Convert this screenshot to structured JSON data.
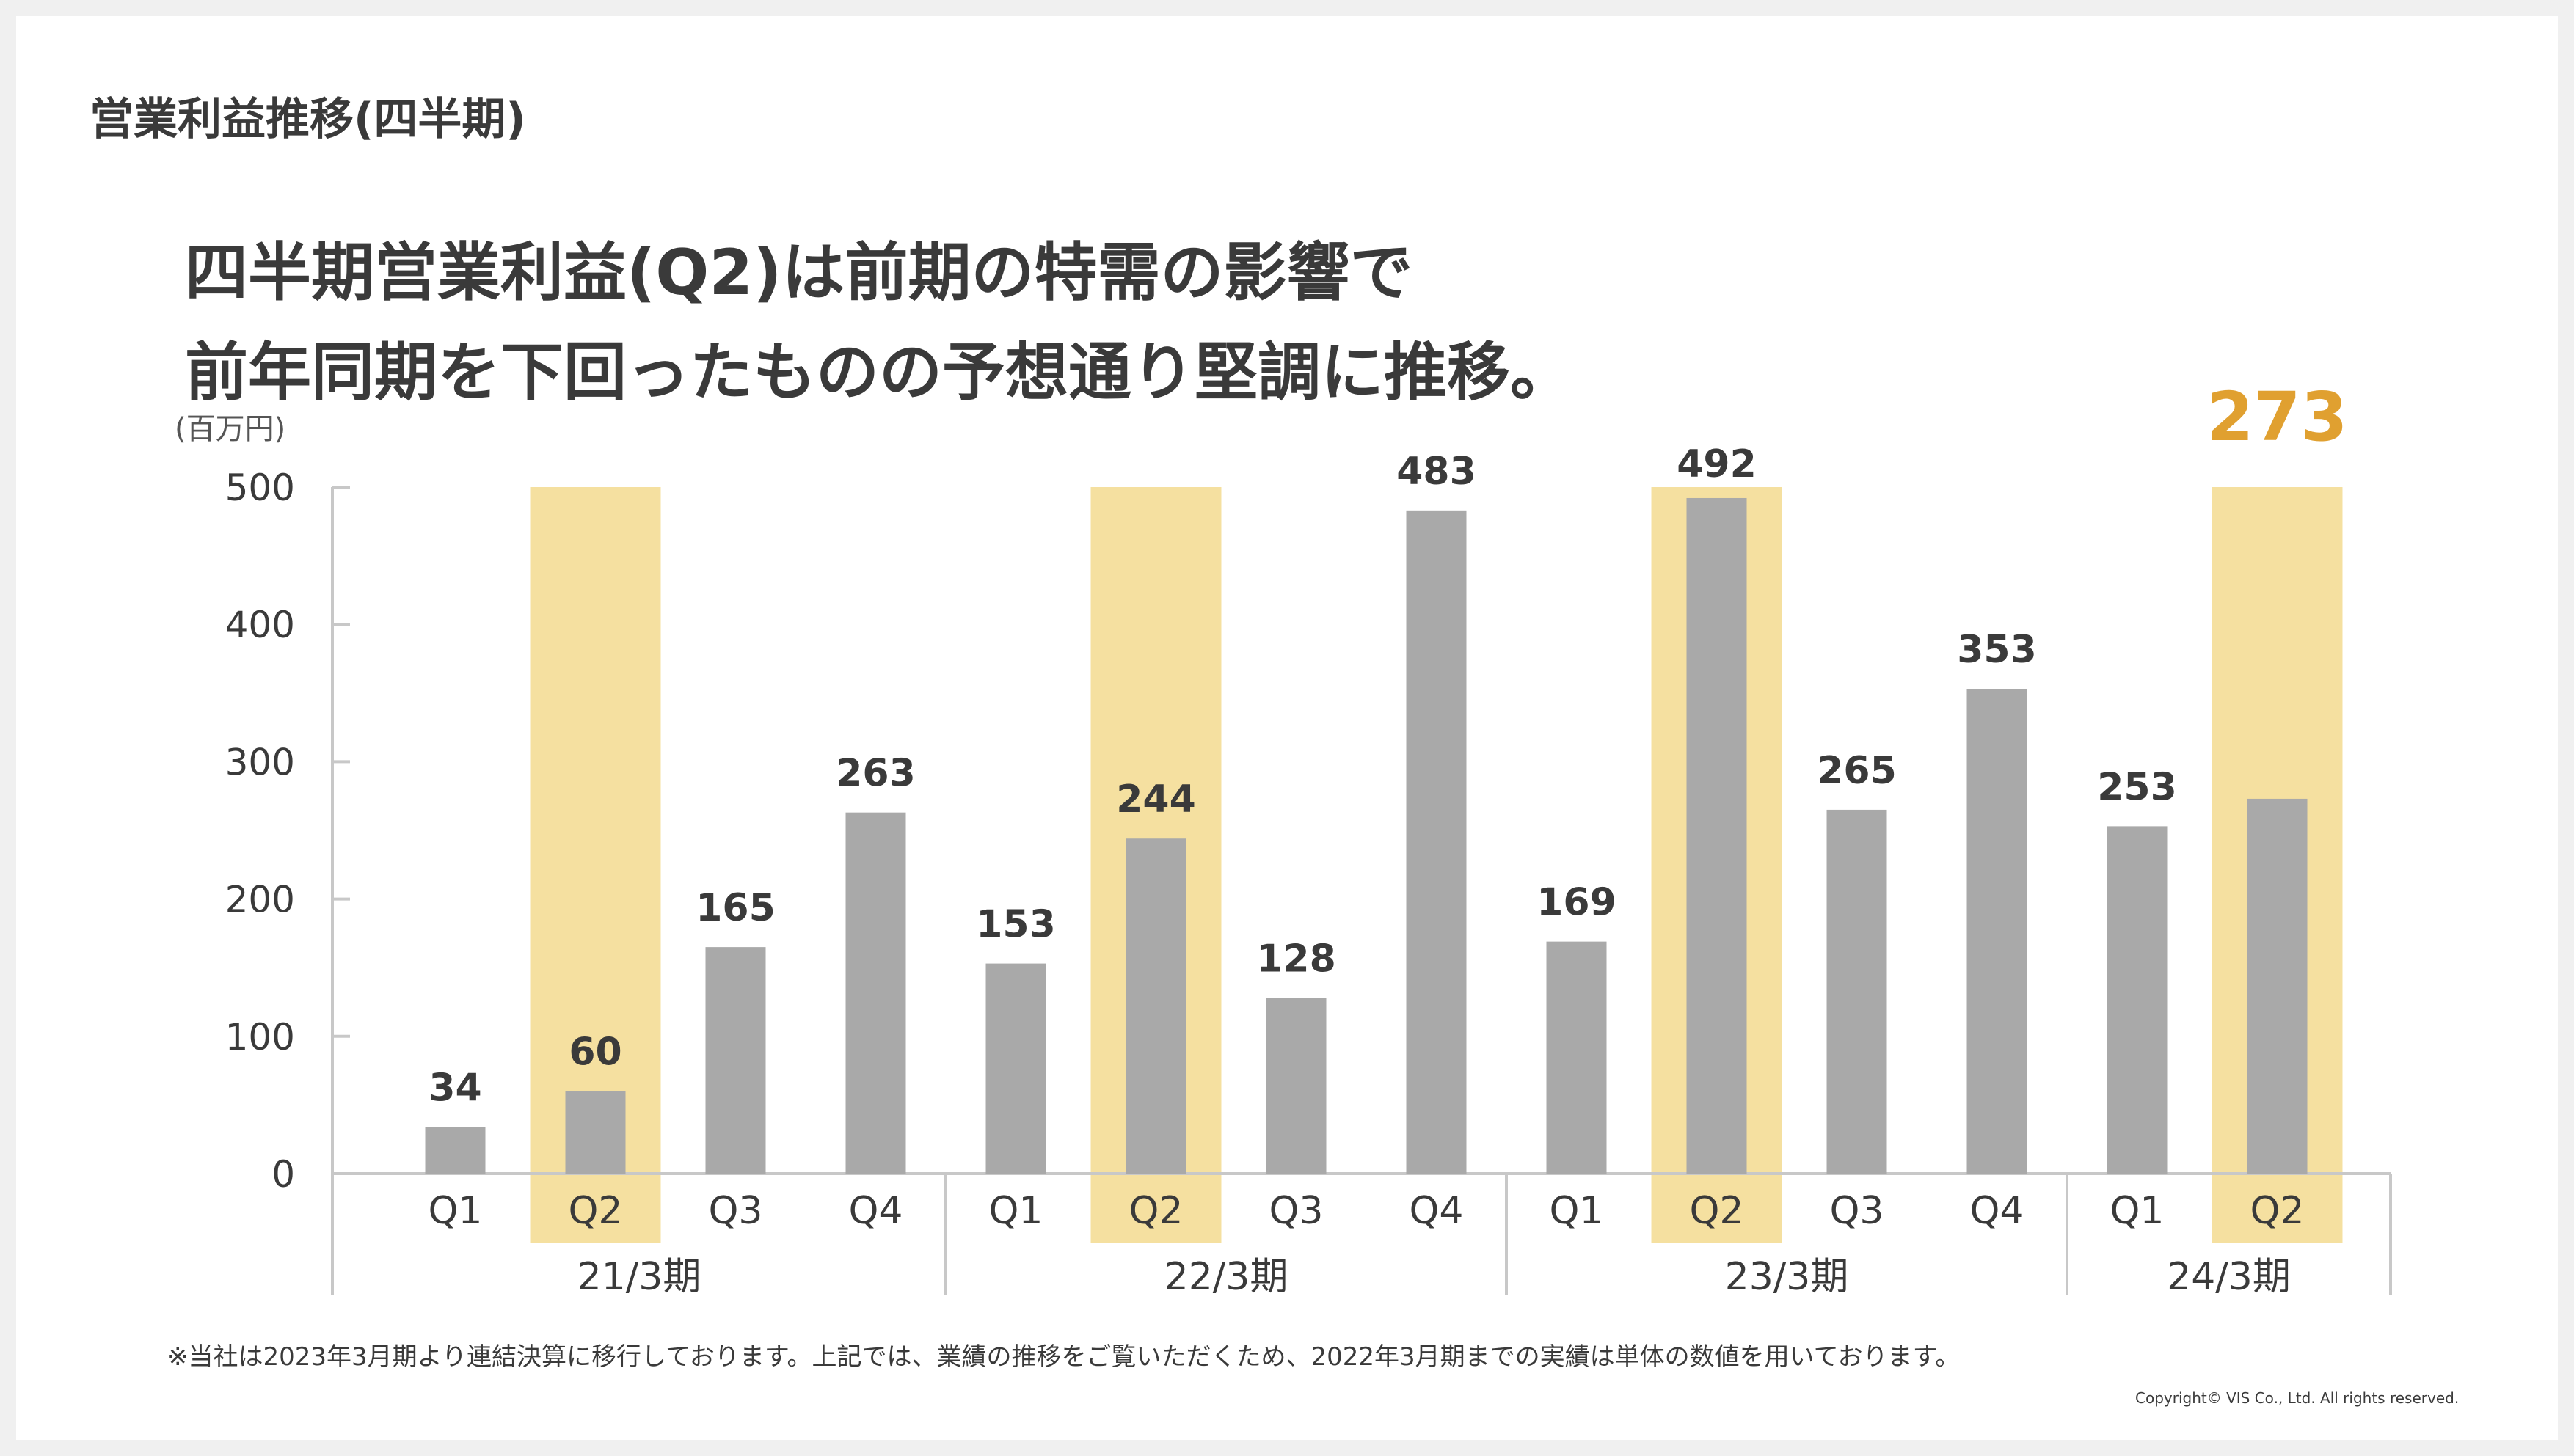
{
  "section_title": "営業利益推移(四半期)",
  "headline": {
    "line1": "四半期営業利益(Q2)は前期の特需の影響で",
    "line2": "前年同期を下回ったものの予想通り堅調に推移。"
  },
  "footnote": "※当社は2023年3月期より連結決算に移行しております。上記では、業績の推移をご覧いただくため、2022年3月期までの実績は単体の数値を用いております。",
  "copyright": "Copyright© VIS Co., Ltd. All rights reserved.",
  "colors": {
    "bar": "#a9a9a9",
    "highlight": "#f5e0a0",
    "accent": "#e0a030",
    "text": "#3a3a3a",
    "axis": "#c8c8c8"
  },
  "chart_data": {
    "type": "bar",
    "unit_label": "(百万円)",
    "ylim": [
      0,
      500
    ],
    "yticks": [
      0,
      100,
      200,
      300,
      400,
      500
    ],
    "groups": [
      {
        "label": "21/3期",
        "bars": [
          {
            "category": "Q1",
            "value": 34,
            "highlight": false,
            "accent": false
          },
          {
            "category": "Q2",
            "value": 60,
            "highlight": true,
            "accent": false
          },
          {
            "category": "Q3",
            "value": 165,
            "highlight": false,
            "accent": false
          },
          {
            "category": "Q4",
            "value": 263,
            "highlight": false,
            "accent": false
          }
        ]
      },
      {
        "label": "22/3期",
        "bars": [
          {
            "category": "Q1",
            "value": 153,
            "highlight": false,
            "accent": false
          },
          {
            "category": "Q2",
            "value": 244,
            "highlight": true,
            "accent": false
          },
          {
            "category": "Q3",
            "value": 128,
            "highlight": false,
            "accent": false
          },
          {
            "category": "Q4",
            "value": 483,
            "highlight": false,
            "accent": false
          }
        ]
      },
      {
        "label": "23/3期",
        "bars": [
          {
            "category": "Q1",
            "value": 169,
            "highlight": false,
            "accent": false
          },
          {
            "category": "Q2",
            "value": 492,
            "highlight": true,
            "accent": false
          },
          {
            "category": "Q3",
            "value": 265,
            "highlight": false,
            "accent": false
          },
          {
            "category": "Q4",
            "value": 353,
            "highlight": false,
            "accent": false
          }
        ]
      },
      {
        "label": "24/3期",
        "bars": [
          {
            "category": "Q1",
            "value": 253,
            "highlight": false,
            "accent": false
          },
          {
            "category": "Q2",
            "value": 273,
            "highlight": true,
            "accent": true
          }
        ]
      }
    ]
  }
}
